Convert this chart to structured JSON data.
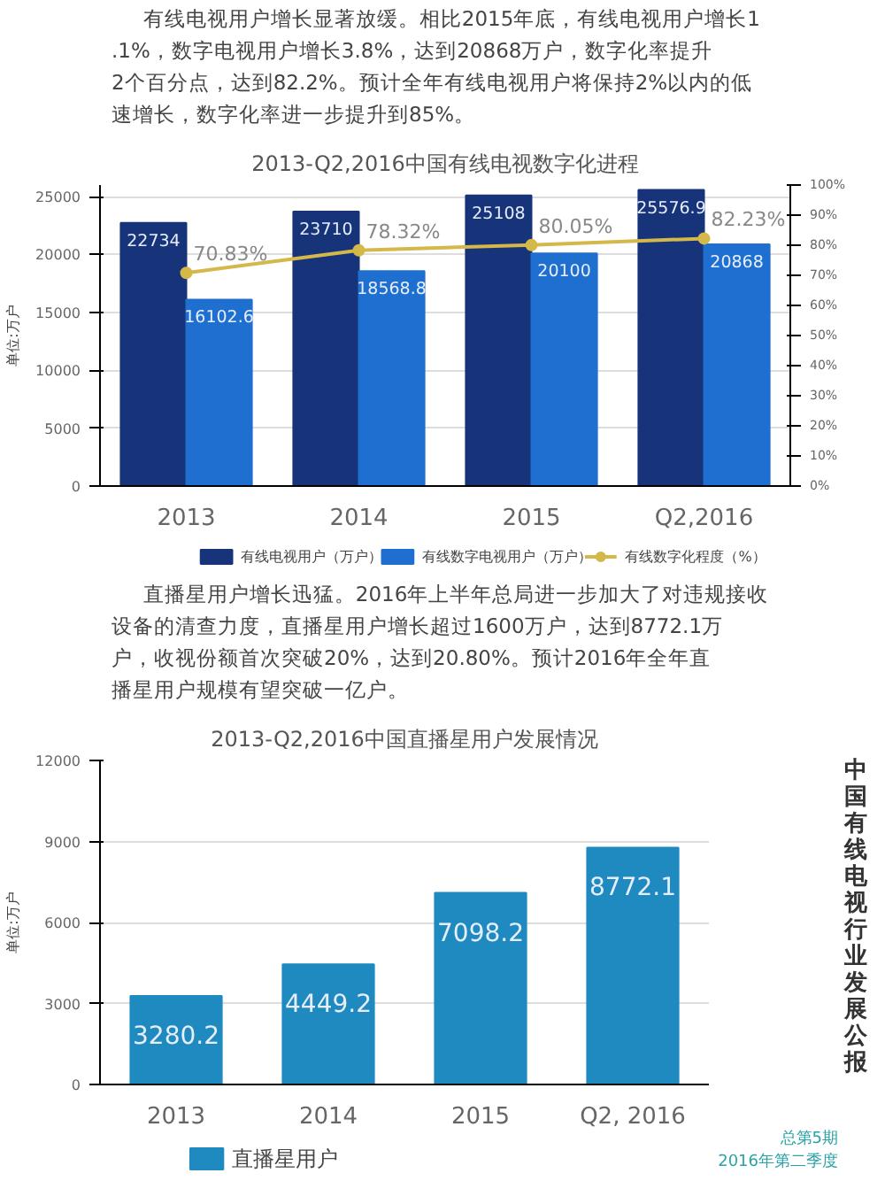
{
  "chart_data": [
    {
      "type": "bar",
      "title": "2013-Q2,2016中国有线电视数字化进程",
      "ylabel": "单位:万户",
      "categories": [
        "2013",
        "2014",
        "2015",
        "Q2,2016"
      ],
      "annotations": [
        "有线电视用户增长显著放缓。相比2015年底，有线电视用户增长1.1%，数字电视用户增长3.8%，达到20868万户，数字化率提升2个百分点，达到82.2%。预计全年有线电视用户将保持2%以内的低速增长，数字化率进一步提升到85%。"
      ],
      "series": [
        {
          "name": "有线电视用户（万户）",
          "type": "bar",
          "color": "#17347a",
          "values": [
            22734,
            23710,
            25108,
            25576.9
          ],
          "value_labels": [
            "22734",
            "23710",
            "25108",
            "25576.9"
          ]
        },
        {
          "name": "有线数字电视用户（万户）",
          "type": "bar",
          "color": "#1f6fd0",
          "values": [
            16102.6,
            18568.8,
            20100,
            20868
          ],
          "value_labels": [
            "16102.6",
            "18568.8",
            "20100",
            "20868"
          ]
        },
        {
          "name": "有线数字化程度（%）",
          "type": "line",
          "axis": "y2",
          "color": "#d4b84a",
          "marker": "circle",
          "values": [
            70.83,
            78.32,
            80.05,
            82.23
          ],
          "value_labels": [
            "70.83%",
            "78.32%",
            "80.05%",
            "82.23%"
          ]
        }
      ],
      "ylim": [
        0,
        26000
      ],
      "yticks": [
        0,
        5000,
        10000,
        15000,
        20000,
        25000
      ],
      "y2lim": [
        0,
        100
      ],
      "y2ticks": [
        {
          "value": 0,
          "label": "0%"
        },
        {
          "value": 10,
          "label": "10%"
        },
        {
          "value": 20,
          "label": "20%"
        },
        {
          "value": 30,
          "label": "30%"
        },
        {
          "value": 40,
          "label": "40%"
        },
        {
          "value": 50,
          "label": "50%"
        },
        {
          "value": 60,
          "label": "60%"
        },
        {
          "value": 70,
          "label": "70%"
        },
        {
          "value": 80,
          "label": "80%"
        },
        {
          "value": 90,
          "label": "90%"
        },
        {
          "value": 100,
          "label": "100%"
        }
      ],
      "grid": "y",
      "legend": "bottom"
    },
    {
      "type": "bar",
      "title": "2013-Q2,2016中国直播星用户发展情况",
      "ylabel": "单位:万户",
      "categories": [
        "2013",
        "2014",
        "2015",
        "Q2, 2016"
      ],
      "annotations": [
        "直播星用户增长迅猛。2016年上半年总局进一步加大了对违规接收设备的清查力度，直播星用户增长超过1600万户，达到8772.1万户，收视份额首次突破20%，达到20.80%。预计2016年全年直播星用户规模有望突破一亿户。",
        "中国有线电视行业发展公报",
        "总第5期",
        "2016年第二季度"
      ],
      "series": [
        {
          "name": "直播星用户",
          "type": "bar",
          "color": "#1f8ac0",
          "values": [
            3280.2,
            4449.2,
            7098.2,
            8772.1
          ]
        }
      ],
      "data_labels": true,
      "ylim": [
        0,
        12000
      ],
      "yticks": [
        0,
        3000,
        6000,
        9000,
        12000
      ],
      "grid": "y",
      "legend": "bottom"
    }
  ]
}
